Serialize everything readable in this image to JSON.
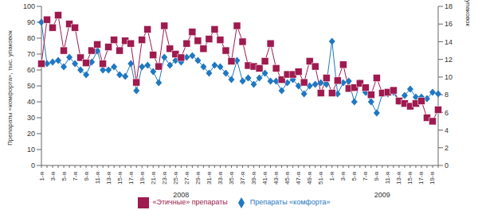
{
  "chart_data": {
    "type": "line",
    "y_label": "Препараты «комфорта», тыс. упаковок",
    "y2_label": "«Этичные» препараты, тыс. упаковок",
    "categories": [
      "1-я",
      null,
      "3-я",
      null,
      "5-я",
      null,
      "7-я",
      null,
      "9-я",
      null,
      "11-я",
      null,
      "13-я",
      null,
      "15-я",
      null,
      "17-я",
      null,
      "19-я",
      null,
      "21-я",
      null,
      "23-я",
      null,
      "25-я",
      null,
      "27-я",
      null,
      "29-я",
      null,
      "31-я",
      null,
      "33-я",
      null,
      "35-я",
      null,
      "37-я",
      null,
      "39-я",
      null,
      "41-я",
      null,
      "43-я",
      null,
      "45-я",
      null,
      "47-я",
      null,
      "49-я",
      null,
      "51-я",
      null,
      "1-я",
      null,
      "3-я",
      null,
      "5-я",
      null,
      "7-я",
      null,
      "9-я",
      null,
      "11-я",
      null,
      "13-я",
      null,
      "15-я",
      null,
      "17-я",
      null,
      "19-я",
      null
    ],
    "groups": [
      {
        "label": "2008",
        "count": 52
      },
      {
        "label": "2009",
        "count": 20
      }
    ],
    "series": [
      {
        "name": "Препараты «комфорта»",
        "color": "#1f78c1",
        "marker": "diamond",
        "values": [
          90,
          64,
          65,
          66,
          62,
          68,
          64,
          60,
          57,
          65,
          72,
          60,
          60,
          62,
          57,
          56,
          64,
          47,
          62,
          63,
          59,
          52,
          68,
          63,
          66,
          65,
          68,
          69,
          66,
          62,
          58,
          63,
          62,
          58,
          54,
          66,
          53,
          55,
          51,
          55,
          58,
          53,
          53,
          47,
          52,
          54,
          50,
          45,
          50,
          51,
          52,
          51,
          78,
          45,
          52,
          53,
          40,
          52,
          46,
          40,
          33,
          45,
          45,
          46,
          40,
          44,
          48,
          43,
          43,
          42,
          46,
          45
        ]
      },
      {
        "name": "«Этичные» препараты",
        "color": "#9e1a4f",
        "marker": "square",
        "axis": "y2",
        "values": [
          11.5,
          16.5,
          15.6,
          17,
          13,
          16,
          15.6,
          12.2,
          11.6,
          13,
          13.7,
          11.5,
          13.4,
          14.2,
          13,
          14.1,
          13.8,
          9.4,
          14.2,
          15.4,
          12.5,
          11.2,
          15.8,
          13.2,
          12.6,
          12.2,
          13.8,
          15.1,
          14.1,
          13.2,
          14.3,
          15.4,
          14.2,
          13,
          11.8,
          15.8,
          14,
          11.3,
          11.2,
          11.0,
          11.8,
          13.8,
          11.0,
          9.7,
          10.3,
          10.3,
          10.6,
          9.4,
          11.8,
          11.2,
          8.2,
          9.9,
          8.2,
          9.6,
          11.4,
          8.7,
          8.8,
          9.3,
          8.8,
          8.0,
          9.9,
          8.2,
          8.3,
          8.5,
          7.3,
          7.0,
          6.7,
          7.0,
          7.3,
          5.4,
          5.0,
          6.3
        ]
      }
    ],
    "ylim": [
      0,
      100
    ],
    "yticks": [
      0,
      10,
      20,
      30,
      40,
      50,
      60,
      70,
      80,
      90,
      100
    ],
    "y2lim": [
      0,
      18
    ],
    "y2ticks": [
      0,
      2,
      4,
      6,
      8,
      10,
      12,
      14,
      16,
      18
    ],
    "grid": false,
    "legend": "bottom"
  }
}
